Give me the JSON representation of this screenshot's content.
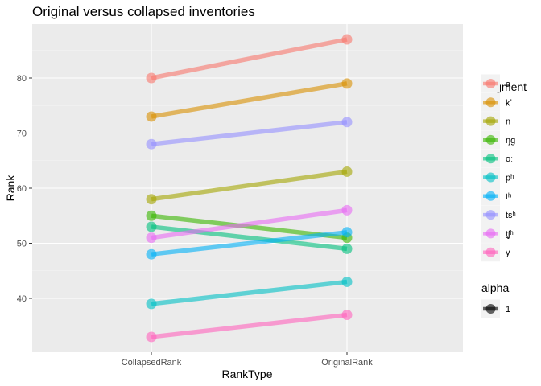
{
  "chart_data": {
    "type": "line",
    "title": "Original versus collapsed inventories",
    "xlabel": "RankType",
    "ylabel": "Rank",
    "categories": [
      "CollapsedRank",
      "OriginalRank"
    ],
    "ylim": [
      30,
      92
    ],
    "yticks": [
      40,
      50,
      60,
      70,
      80
    ],
    "grid": true,
    "legend_position": "right",
    "series": [
      {
        "name": "a",
        "values": [
          80,
          87
        ],
        "color": "#F8766D"
      },
      {
        "name": "kʼ",
        "values": [
          73,
          79
        ],
        "color": "#D89000"
      },
      {
        "name": "n",
        "values": [
          58,
          63
        ],
        "color": "#A3A500"
      },
      {
        "name": "ŋg",
        "values": [
          55,
          51
        ],
        "color": "#39B600"
      },
      {
        "name": "oː",
        "values": [
          53,
          49
        ],
        "color": "#00BF7D"
      },
      {
        "name": "pʰ",
        "values": [
          39,
          43
        ],
        "color": "#00BFC4"
      },
      {
        "name": "tʰ",
        "values": [
          48,
          52
        ],
        "color": "#00B0F6"
      },
      {
        "name": "tsʰ",
        "values": [
          68,
          72
        ],
        "color": "#9590FF"
      },
      {
        "name": "t̠ʃʰ",
        "values": [
          51,
          56
        ],
        "color": "#E76BF3"
      },
      {
        "name": "y",
        "values": [
          33,
          37
        ],
        "color": "#FF62BC"
      }
    ],
    "legend": {
      "segment_title": "Segment",
      "alpha_title": "alpha",
      "alpha_label": "1"
    }
  }
}
